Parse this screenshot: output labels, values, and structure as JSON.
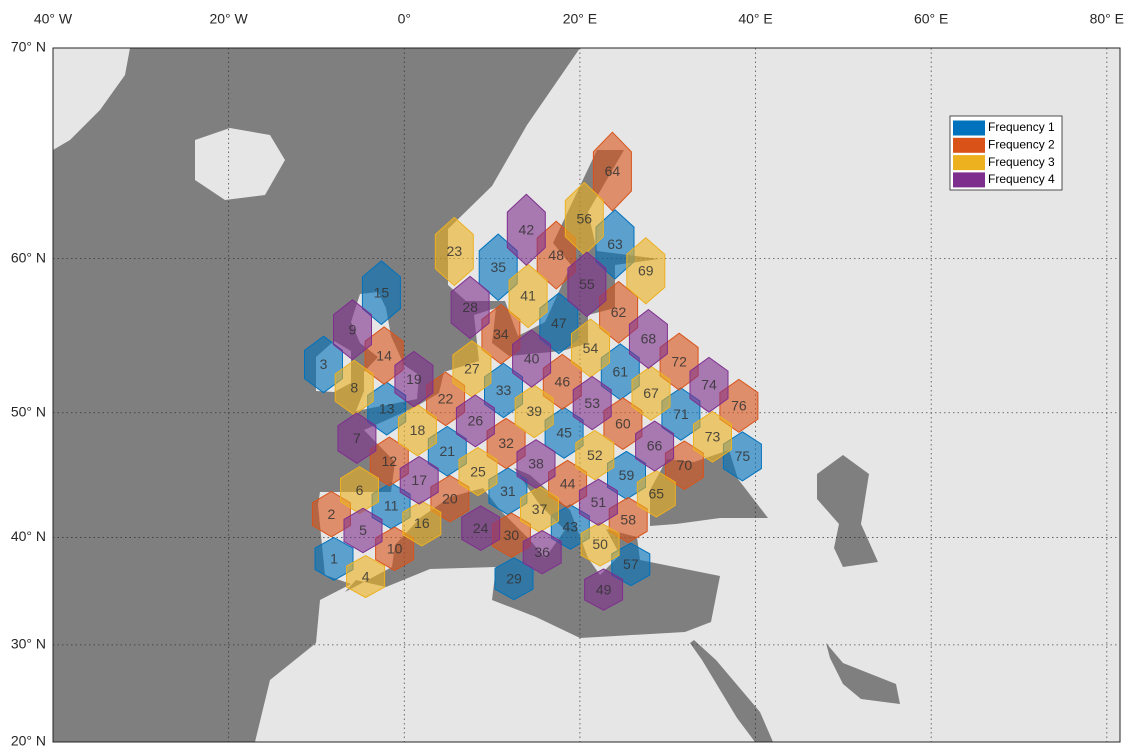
{
  "map": {
    "xlim": [
      -40,
      81.5
    ],
    "ylim": [
      20,
      70
    ],
    "xticks": [
      {
        "value": -40,
        "label": "40° W"
      },
      {
        "value": -20,
        "label": "20° W"
      },
      {
        "value": 0,
        "label": "0°"
      },
      {
        "value": 20,
        "label": "20° E"
      },
      {
        "value": 40,
        "label": "40° E"
      },
      {
        "value": 60,
        "label": "60° E"
      },
      {
        "value": 80,
        "label": "80° E"
      }
    ],
    "yticks": [
      {
        "value": 20,
        "label": "20° N"
      },
      {
        "value": 30,
        "label": "30° N"
      },
      {
        "value": 40,
        "label": "40° N"
      },
      {
        "value": 50,
        "label": "50° N"
      },
      {
        "value": 60,
        "label": "60° N"
      },
      {
        "value": 70,
        "label": "70° N"
      }
    ],
    "grid": true,
    "series": [
      {
        "name": "Frequency 1",
        "color": "#0072bd",
        "cells": [
          {
            "label": "1",
            "lon": -8.0,
            "lat": 38.1
          },
          {
            "label": "3",
            "lon": -9.2,
            "lat": 53.4
          },
          {
            "label": "11",
            "lon": -1.5,
            "lat": 42.7
          },
          {
            "label": "13",
            "lon": -2.0,
            "lat": 50.3
          },
          {
            "label": "15",
            "lon": -2.6,
            "lat": 58.0
          },
          {
            "label": "21",
            "lon": 4.9,
            "lat": 47.1
          },
          {
            "label": "29",
            "lon": 12.5,
            "lat": 36.3
          },
          {
            "label": "31",
            "lon": 11.8,
            "lat": 43.9
          },
          {
            "label": "33",
            "lon": 11.3,
            "lat": 51.6
          },
          {
            "label": "35",
            "lon": 10.7,
            "lat": 59.5
          },
          {
            "label": "43",
            "lon": 18.9,
            "lat": 40.9
          },
          {
            "label": "45",
            "lon": 18.2,
            "lat": 48.5
          },
          {
            "label": "47",
            "lon": 17.6,
            "lat": 56.1
          },
          {
            "label": "57",
            "lon": 25.8,
            "lat": 37.6
          },
          {
            "label": "59",
            "lon": 25.3,
            "lat": 45.2
          },
          {
            "label": "61",
            "lon": 24.6,
            "lat": 52.9
          },
          {
            "label": "63",
            "lon": 24.0,
            "lat": 60.8
          },
          {
            "label": "71",
            "lon": 31.5,
            "lat": 49.9
          },
          {
            "label": "75",
            "lon": 38.5,
            "lat": 46.7
          }
        ]
      },
      {
        "name": "Frequency 2",
        "color": "#d95319",
        "cells": [
          {
            "label": "2",
            "lon": -8.3,
            "lat": 42.0
          },
          {
            "label": "10",
            "lon": -1.1,
            "lat": 39.0
          },
          {
            "label": "12",
            "lon": -1.7,
            "lat": 46.3
          },
          {
            "label": "14",
            "lon": -2.3,
            "lat": 54.0
          },
          {
            "label": "20",
            "lon": 5.2,
            "lat": 43.3
          },
          {
            "label": "22",
            "lon": 4.7,
            "lat": 51.0
          },
          {
            "label": "30",
            "lon": 12.2,
            "lat": 40.2
          },
          {
            "label": "32",
            "lon": 11.6,
            "lat": 47.7
          },
          {
            "label": "34",
            "lon": 11.0,
            "lat": 55.4
          },
          {
            "label": "44",
            "lon": 18.6,
            "lat": 44.5
          },
          {
            "label": "46",
            "lon": 18.0,
            "lat": 52.2
          },
          {
            "label": "48",
            "lon": 17.3,
            "lat": 60.2
          },
          {
            "label": "58",
            "lon": 25.5,
            "lat": 41.5
          },
          {
            "label": "60",
            "lon": 24.9,
            "lat": 49.2
          },
          {
            "label": "62",
            "lon": 24.4,
            "lat": 56.8
          },
          {
            "label": "64",
            "lon": 23.7,
            "lat": 64.6
          },
          {
            "label": "70",
            "lon": 31.9,
            "lat": 46.0
          },
          {
            "label": "72",
            "lon": 31.3,
            "lat": 53.6
          },
          {
            "label": "76",
            "lon": 38.1,
            "lat": 50.5
          }
        ]
      },
      {
        "name": "Frequency 3",
        "color": "#edb120",
        "cells": [
          {
            "label": "4",
            "lon": -4.4,
            "lat": 36.5
          },
          {
            "label": "6",
            "lon": -5.1,
            "lat": 44.0
          },
          {
            "label": "8",
            "lon": -5.7,
            "lat": 51.8
          },
          {
            "label": "16",
            "lon": 2.0,
            "lat": 41.2
          },
          {
            "label": "18",
            "lon": 1.5,
            "lat": 48.7
          },
          {
            "label": "23",
            "lon": 5.7,
            "lat": 60.4
          },
          {
            "label": "25",
            "lon": 8.4,
            "lat": 45.5
          },
          {
            "label": "27",
            "lon": 7.7,
            "lat": 53.1
          },
          {
            "label": "37",
            "lon": 15.4,
            "lat": 42.4
          },
          {
            "label": "39",
            "lon": 14.8,
            "lat": 50.1
          },
          {
            "label": "41",
            "lon": 14.1,
            "lat": 57.8
          },
          {
            "label": "50",
            "lon": 22.3,
            "lat": 39.4
          },
          {
            "label": "52",
            "lon": 21.7,
            "lat": 46.8
          },
          {
            "label": "54",
            "lon": 21.2,
            "lat": 54.5
          },
          {
            "label": "56",
            "lon": 20.5,
            "lat": 62.2
          },
          {
            "label": "65",
            "lon": 28.7,
            "lat": 43.7
          },
          {
            "label": "67",
            "lon": 28.1,
            "lat": 51.4
          },
          {
            "label": "69",
            "lon": 27.5,
            "lat": 59.3
          },
          {
            "label": "73",
            "lon": 35.1,
            "lat": 48.2
          }
        ]
      },
      {
        "name": "Frequency 4",
        "color": "#7e2f8e",
        "cells": [
          {
            "label": "5",
            "lon": -4.7,
            "lat": 40.6
          },
          {
            "label": "7",
            "lon": -5.4,
            "lat": 48.1
          },
          {
            "label": "9",
            "lon": -5.9,
            "lat": 55.7
          },
          {
            "label": "17",
            "lon": 1.7,
            "lat": 44.8
          },
          {
            "label": "19",
            "lon": 1.1,
            "lat": 52.4
          },
          {
            "label": "24",
            "lon": 8.7,
            "lat": 40.8
          },
          {
            "label": "26",
            "lon": 8.1,
            "lat": 49.4
          },
          {
            "label": "28",
            "lon": 7.5,
            "lat": 57.1
          },
          {
            "label": "36",
            "lon": 15.7,
            "lat": 38.7
          },
          {
            "label": "38",
            "lon": 15.0,
            "lat": 46.1
          },
          {
            "label": "40",
            "lon": 14.5,
            "lat": 53.8
          },
          {
            "label": "42",
            "lon": 13.9,
            "lat": 61.6
          },
          {
            "label": "49",
            "lon": 22.7,
            "lat": 35.3
          },
          {
            "label": "51",
            "lon": 22.1,
            "lat": 43.0
          },
          {
            "label": "53",
            "lon": 21.4,
            "lat": 50.7
          },
          {
            "label": "55",
            "lon": 20.8,
            "lat": 58.5
          },
          {
            "label": "66",
            "lon": 28.5,
            "lat": 47.5
          },
          {
            "label": "68",
            "lon": 27.8,
            "lat": 55.1
          },
          {
            "label": "74",
            "lon": 34.7,
            "lat": 52.0
          }
        ]
      }
    ]
  }
}
